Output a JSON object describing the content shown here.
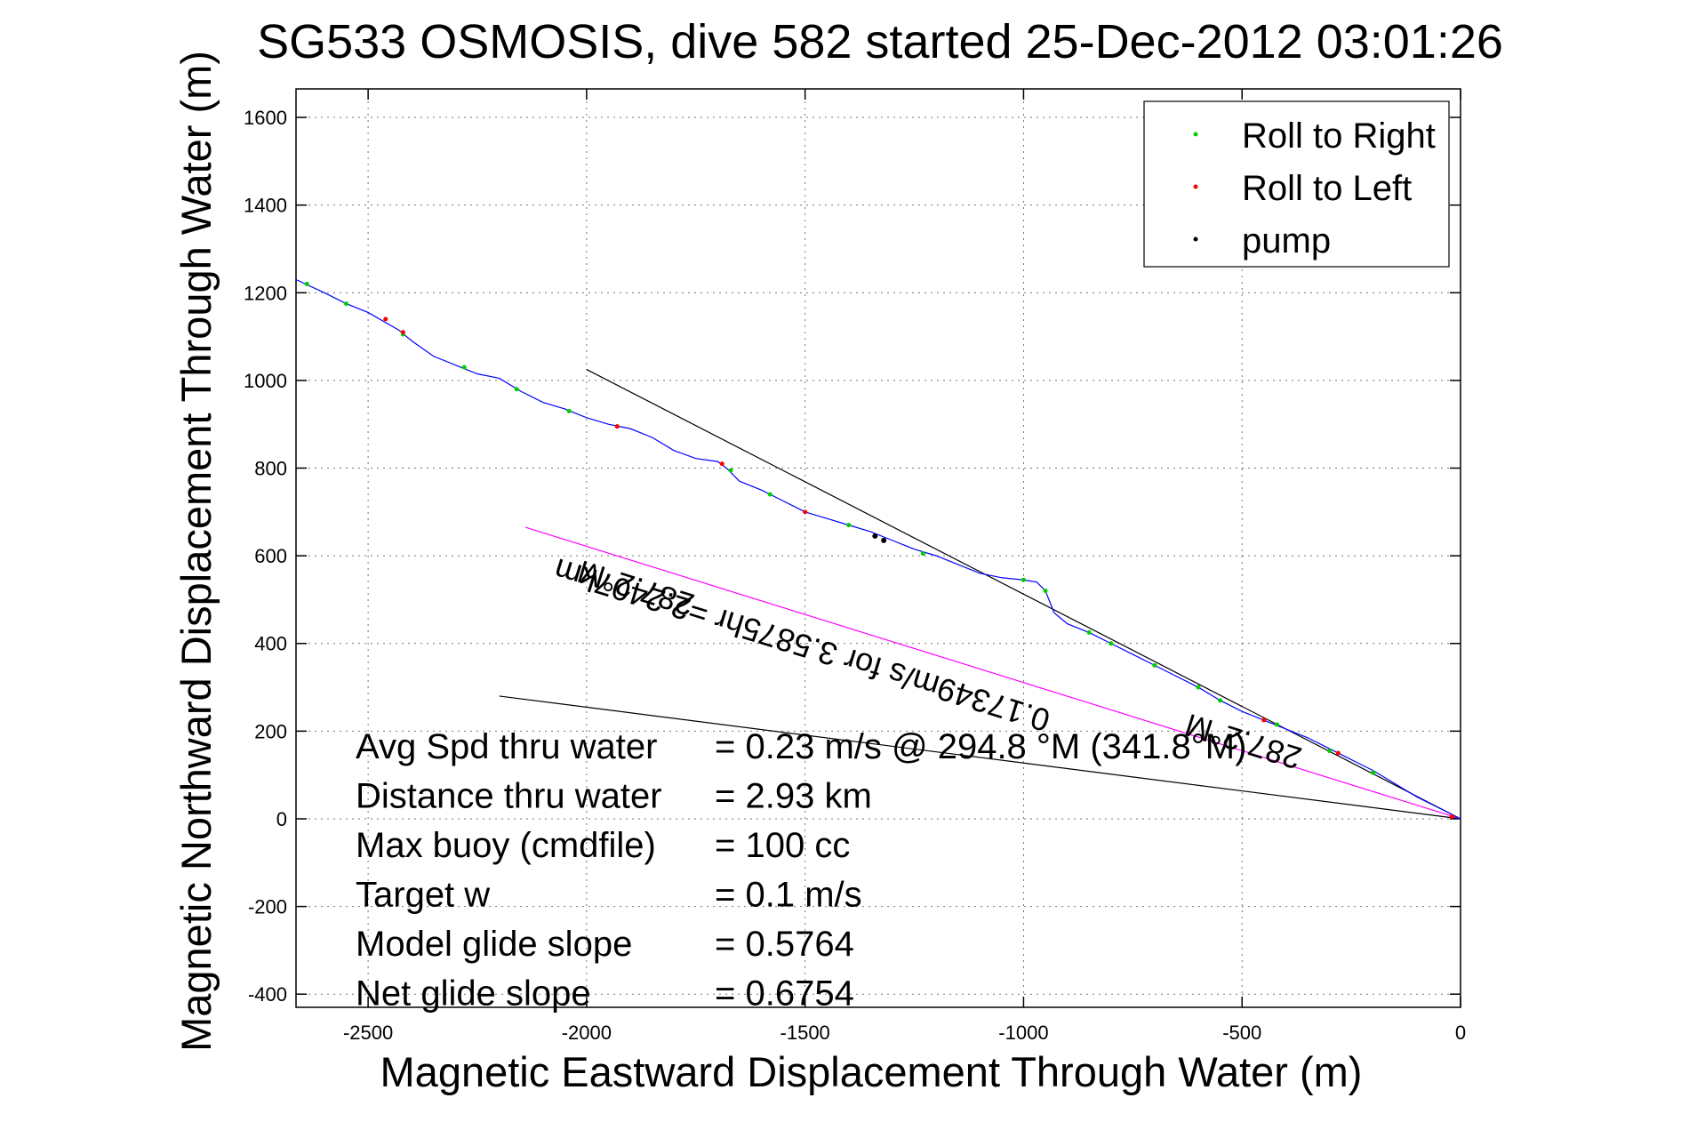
{
  "chart_data": {
    "type": "line",
    "title": "SG533 OSMOSIS, dive 582 started 25-Dec-2012 03:01:26",
    "xlabel": "Magnetic Eastward Displacement Through Water (m)",
    "ylabel": "Magnetic Northward Displacement Through Water (m)",
    "xlim": [
      -2665,
      0
    ],
    "ylim": [
      -430,
      1665
    ],
    "grid": true,
    "legend_placement": "top-right",
    "x_ticks": [
      -2500,
      -2000,
      -1500,
      -1000,
      -500,
      0
    ],
    "y_ticks": [
      -400,
      -200,
      0,
      200,
      400,
      600,
      800,
      1000,
      1200,
      1400,
      1600
    ],
    "legend": [
      {
        "label": "Roll to Right",
        "color": "#00cc00"
      },
      {
        "label": "Roll to Left",
        "color": "#ff0000"
      },
      {
        "label": "pump",
        "color": "#000000"
      }
    ],
    "track": {
      "name": "track",
      "color": "#0000ff",
      "points": [
        [
          0,
          0
        ],
        [
          -50,
          25
        ],
        [
          -100,
          50
        ],
        [
          -150,
          80
        ],
        [
          -200,
          110
        ],
        [
          -250,
          135
        ],
        [
          -300,
          160
        ],
        [
          -350,
          185
        ],
        [
          -400,
          205
        ],
        [
          -450,
          225
        ],
        [
          -500,
          245
        ],
        [
          -550,
          270
        ],
        [
          -600,
          300
        ],
        [
          -650,
          325
        ],
        [
          -700,
          350
        ],
        [
          -750,
          375
        ],
        [
          -800,
          400
        ],
        [
          -850,
          425
        ],
        [
          -900,
          445
        ],
        [
          -930,
          470
        ],
        [
          -950,
          520
        ],
        [
          -970,
          540
        ],
        [
          -1000,
          545
        ],
        [
          -1050,
          550
        ],
        [
          -1100,
          560
        ],
        [
          -1150,
          580
        ],
        [
          -1200,
          600
        ],
        [
          -1250,
          615
        ],
        [
          -1300,
          635
        ],
        [
          -1350,
          655
        ],
        [
          -1400,
          670
        ],
        [
          -1450,
          685
        ],
        [
          -1500,
          700
        ],
        [
          -1550,
          725
        ],
        [
          -1600,
          750
        ],
        [
          -1650,
          770
        ],
        [
          -1680,
          800
        ],
        [
          -1700,
          815
        ],
        [
          -1750,
          822
        ],
        [
          -1800,
          840
        ],
        [
          -1850,
          870
        ],
        [
          -1900,
          890
        ],
        [
          -1950,
          900
        ],
        [
          -2000,
          915
        ],
        [
          -2050,
          935
        ],
        [
          -2100,
          950
        ],
        [
          -2150,
          975
        ],
        [
          -2200,
          1005
        ],
        [
          -2250,
          1015
        ],
        [
          -2300,
          1035
        ],
        [
          -2350,
          1055
        ],
        [
          -2400,
          1090
        ],
        [
          -2430,
          1115
        ],
        [
          -2500,
          1155
        ],
        [
          -2550,
          1175
        ],
        [
          -2600,
          1200
        ],
        [
          -2665,
          1230
        ]
      ]
    },
    "roll_right": [
      [
        -200,
        105
      ],
      [
        -300,
        155
      ],
      [
        -420,
        215
      ],
      [
        -550,
        270
      ],
      [
        -600,
        300
      ],
      [
        -700,
        350
      ],
      [
        -800,
        400
      ],
      [
        -850,
        425
      ],
      [
        -950,
        520
      ],
      [
        -1000,
        545
      ],
      [
        -1230,
        605
      ],
      [
        -1400,
        670
      ],
      [
        -1580,
        740
      ],
      [
        -1670,
        795
      ],
      [
        -1930,
        895
      ],
      [
        -2040,
        930
      ],
      [
        -2160,
        980
      ],
      [
        -2280,
        1030
      ],
      [
        -2420,
        1105
      ],
      [
        -2550,
        1175
      ],
      [
        -2640,
        1220
      ]
    ],
    "roll_left": [
      [
        -20,
        5
      ],
      [
        -280,
        150
      ],
      [
        -450,
        225
      ],
      [
        -1500,
        700
      ],
      [
        -1690,
        810
      ],
      [
        -1930,
        895
      ],
      [
        -2420,
        1110
      ],
      [
        -2460,
        1140
      ]
    ],
    "pump": [
      [
        -1320,
        635
      ],
      [
        -1340,
        645
      ]
    ],
    "lines": [
      {
        "name": "black-line-1",
        "color": "#000000",
        "points": [
          [
            -2000,
            1025
          ],
          [
            0,
            0
          ]
        ]
      },
      {
        "name": "black-line-2",
        "color": "#000000",
        "points": [
          [
            -2200,
            280
          ],
          [
            0,
            0
          ]
        ]
      },
      {
        "name": "magenta-line",
        "color": "#ff00ff",
        "points": [
          [
            -2140,
            665
          ],
          [
            0,
            0
          ]
        ]
      }
    ],
    "annotations": [
      {
        "text": "287.2°M",
        "x": -1880,
        "y": 550,
        "rotate": 197.2
      },
      {
        "text": "0.17349m/s for 3.5875hr =2.2407km",
        "x": -1500,
        "y": 420,
        "rotate": 197.2
      },
      {
        "text": "287.2°M",
        "x": -490,
        "y": 200,
        "rotate": 197.2
      }
    ],
    "info": [
      {
        "label": "Avg Spd thru water",
        "value": "=  0.23 m/s @ 294.8 °M (341.8°M)"
      },
      {
        "label": "Distance thru water",
        "value": "=  2.93 km"
      },
      {
        "label": "Max buoy (cmdfile)",
        "value": "= 100 cc"
      },
      {
        "label": "Target w",
        "value": "= 0.1 m/s"
      },
      {
        "label": "Model glide slope",
        "value": "= 0.5764"
      },
      {
        "label": "Net glide slope",
        "value": "= 0.6754"
      }
    ]
  }
}
